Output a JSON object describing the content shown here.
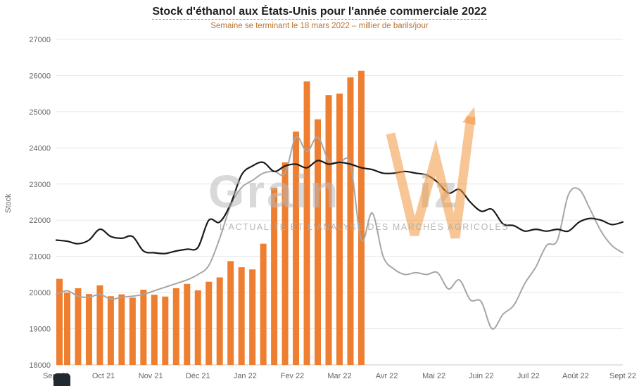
{
  "watermark": {
    "brand_left": "Grain",
    "brand_right": "iz",
    "tagline": "L'ACTUALITÉ ET L'ANALYSE DES MARCHÉS AGRICOLES"
  },
  "chart_data": {
    "type": "combo-bar-line",
    "title": "Stock d'éthanol aux États-Unis pour l'année commerciale 2022",
    "subtitle": "Semaine se terminant le 18 mars 2022 – millier de barils/jour",
    "ylabel": "Stock",
    "xlabel": "",
    "ylim": [
      18000,
      27000
    ],
    "yticks": [
      18000,
      19000,
      20000,
      21000,
      22000,
      23000,
      24000,
      25000,
      26000,
      27000
    ],
    "grid": true,
    "legend": "none",
    "x_tick_labels": [
      "Sept 21",
      "Oct 21",
      "Nov 21",
      "Déc 21",
      "Jan 22",
      "Fev 22",
      "Mar 22",
      "Avr 22",
      "Mai 22",
      "Juin 22",
      "Juil 22",
      "Août 22",
      "Sept 22"
    ],
    "weeks_total": 53,
    "bars": {
      "name": "stock-hebdomadaire-2022",
      "color": "#ee7e30",
      "values": [
        20380,
        20000,
        20120,
        19960,
        20200,
        19900,
        19950,
        19860,
        20080,
        19940,
        19890,
        20120,
        20240,
        20060,
        20300,
        20420,
        20870,
        20700,
        20640,
        21350,
        22900,
        23600,
        24450,
        25840,
        24790,
        25460,
        25500,
        25950,
        26130
      ]
    },
    "series": [
      {
        "name": "gray-line",
        "color": "#a6a6a6",
        "width": 2,
        "values": [
          19950,
          20050,
          19900,
          19870,
          19950,
          19820,
          19870,
          19900,
          19950,
          20050,
          20150,
          20250,
          20350,
          20500,
          20750,
          21500,
          22400,
          22900,
          23100,
          23300,
          23350,
          23300,
          24300,
          23900,
          24300,
          23650,
          23600,
          23550,
          21450,
          22200,
          21000,
          20650,
          20500,
          20550,
          20500,
          20550,
          20100,
          20350,
          19800,
          19750,
          19000,
          19400,
          19650,
          20250,
          20700,
          21300,
          21450,
          22700,
          22850,
          22300,
          21700,
          21300,
          21100
        ]
      },
      {
        "name": "black-line",
        "color": "#1a1a1a",
        "width": 2.2,
        "values": [
          21450,
          21420,
          21350,
          21450,
          21750,
          21550,
          21500,
          21550,
          21150,
          21100,
          21080,
          21150,
          21200,
          21250,
          22000,
          21950,
          22450,
          23250,
          23500,
          23600,
          23350,
          23500,
          23550,
          23450,
          23650,
          23550,
          23600,
          23550,
          23450,
          23400,
          23300,
          23300,
          23350,
          23300,
          23250,
          23050,
          22750,
          22850,
          22500,
          22250,
          22300,
          21900,
          21850,
          21700,
          21750,
          21700,
          21750,
          21700,
          21950,
          22050,
          22000,
          21880,
          21950
        ]
      }
    ]
  }
}
